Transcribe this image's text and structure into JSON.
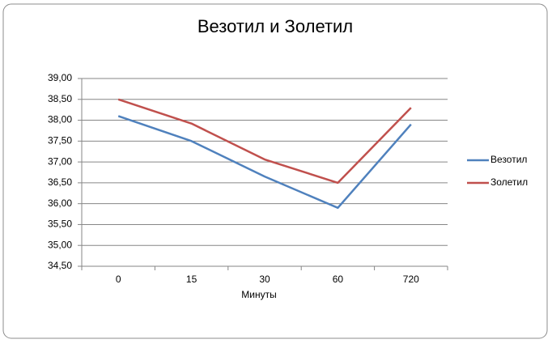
{
  "chart_data": {
    "type": "line",
    "title": "Везотил и Золетил",
    "x_label": "Минуты",
    "categories": [
      "0",
      "15",
      "30",
      "60",
      "720"
    ],
    "series": [
      {
        "name": "Везотил",
        "color": "#4f81bd",
        "values": [
          38.1,
          37.5,
          36.65,
          35.9,
          37.9
        ]
      },
      {
        "name": "Золетил",
        "color": "#c0504d",
        "values": [
          38.5,
          37.92,
          37.06,
          36.5,
          38.3
        ]
      }
    ],
    "ylim": [
      34.5,
      39
    ],
    "yticks": [
      {
        "value": 34.5,
        "label": "34,50"
      },
      {
        "value": 35,
        "label": "35,00"
      },
      {
        "value": 35.5,
        "label": "35,50"
      },
      {
        "value": 36,
        "label": "36,00"
      },
      {
        "value": 36.5,
        "label": "36,50"
      },
      {
        "value": 37,
        "label": "37,00"
      },
      {
        "value": 37.5,
        "label": "37,50"
      },
      {
        "value": 38,
        "label": "38,00"
      },
      {
        "value": 38.5,
        "label": "38,50"
      },
      {
        "value": 39,
        "label": "39,00"
      }
    ],
    "grid": true,
    "legend": "right"
  }
}
